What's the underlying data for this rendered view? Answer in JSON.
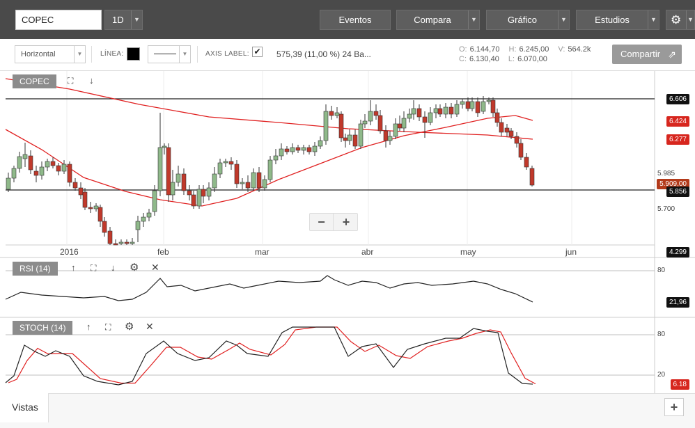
{
  "header": {
    "symbol_value": "COPEC",
    "interval": "1D",
    "events": "Eventos",
    "compare": "Compara",
    "chart": "Gráfico",
    "studies": "Estudios",
    "settings_icon": "gear-icon"
  },
  "toolbar": {
    "style_select": "Horizontal",
    "line_label": "LÍNEA:",
    "line_color": "#000000",
    "axis_label": "AXIS LABEL:",
    "axis_checked": "✔",
    "measure": "575,39 (11,00 %) 24 Ba...",
    "ohlc": {
      "o_label": "O:",
      "o": "6.144,70",
      "h_label": "H:",
      "h": "6.245,00",
      "v_label": "V:",
      "v": "564.2k",
      "c_label": "C:",
      "c": "6.130,40",
      "l_label": "L:",
      "l": "6.070,00"
    },
    "share": "Compartir"
  },
  "main_panel": {
    "label": "COPEC",
    "y_ticks": [
      "5.985",
      "5.700"
    ],
    "x_ticks": [
      "2016",
      "feb",
      "mar",
      "abr",
      "may",
      "jun"
    ],
    "badges": {
      "hline_top": "6.606",
      "ma_short": "6.424",
      "ma_long": "6.277",
      "last": "5.909,00",
      "hline_bottom": "5.856",
      "bottom": "4.299"
    },
    "zoom_out": "−",
    "zoom_in": "+"
  },
  "rsi_panel": {
    "label": "RSI (14)",
    "level": "80",
    "value": "21,96"
  },
  "stoch_panel": {
    "label": "STOCH (14)",
    "level_high": "80",
    "level_low": "20",
    "value": "6.18"
  },
  "footer": {
    "tab": "Vistas",
    "add": "+"
  },
  "colors": {
    "up": "#8fb98a",
    "down": "#c0392b",
    "ma": "#e02020",
    "dark_bar": "#4a4a4a"
  }
}
